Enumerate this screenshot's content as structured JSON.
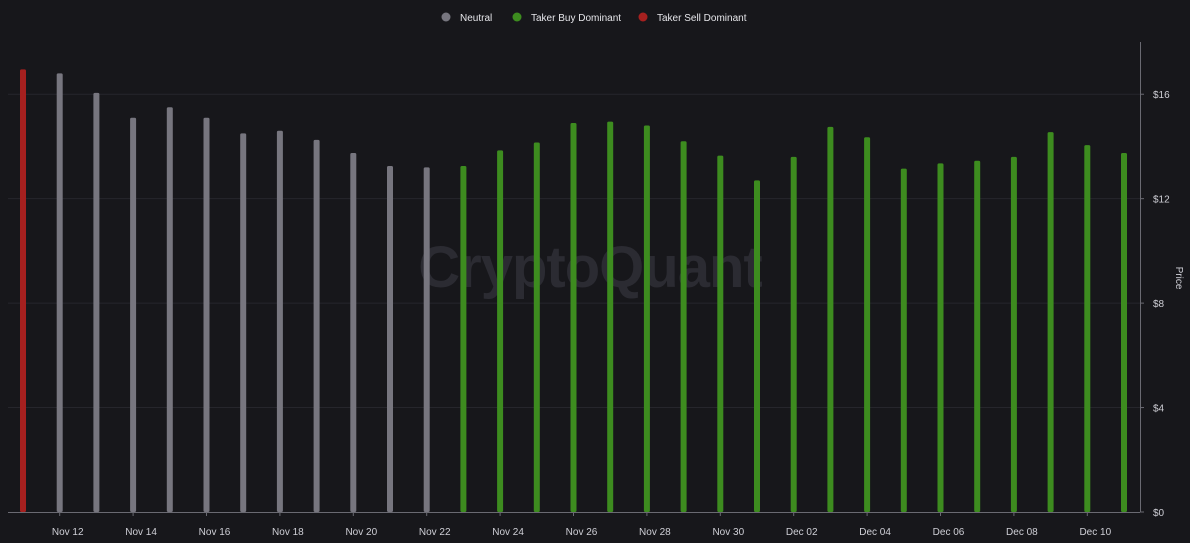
{
  "watermark": "CryptoQuant",
  "colors": {
    "background": "#17171b",
    "grid": "#26262c",
    "axis": "#6a6a72",
    "neutral": "#77767f",
    "buy": "#3d8c1f",
    "sell": "#a6201f"
  },
  "chart_data": {
    "type": "bar",
    "title": "",
    "xlabel": "",
    "ylabel": "Price",
    "ylim": [
      0,
      18
    ],
    "y_ticks": [
      0,
      4,
      8,
      12,
      16
    ],
    "y_tick_labels": [
      "$0",
      "$4",
      "$8",
      "$12",
      "$16"
    ],
    "x_tick_labels": [
      "Nov 12",
      "Nov 14",
      "Nov 16",
      "Nov 18",
      "Nov 20",
      "Nov 22",
      "Nov 24",
      "Nov 26",
      "Nov 28",
      "Nov 30",
      "Dec 02",
      "Dec 04",
      "Dec 06",
      "Dec 08",
      "Dec 10"
    ],
    "legend_position": "top-center",
    "grid": true,
    "legend": [
      {
        "name": "Neutral",
        "color": "#77767f"
      },
      {
        "name": "Taker Buy Dominant",
        "color": "#3d8c1f"
      },
      {
        "name": "Taker Sell Dominant",
        "color": "#a6201f"
      }
    ],
    "categories": [
      "2024-11-11",
      "2024-11-12",
      "2024-11-13",
      "2024-11-14",
      "2024-11-15",
      "2024-11-16",
      "2024-11-17",
      "2024-11-18",
      "2024-11-19",
      "2024-11-20",
      "2024-11-21",
      "2024-11-22",
      "2024-11-23",
      "2024-11-24",
      "2024-11-25",
      "2024-11-26",
      "2024-11-27",
      "2024-11-28",
      "2024-11-29",
      "2024-11-30",
      "2024-12-01",
      "2024-12-02",
      "2024-12-03",
      "2024-12-04",
      "2024-12-05",
      "2024-12-06",
      "2024-12-07",
      "2024-12-08",
      "2024-12-09",
      "2024-12-10",
      "2024-12-11"
    ],
    "values": [
      16.95,
      16.8,
      16.05,
      15.1,
      15.5,
      15.1,
      14.5,
      14.6,
      14.25,
      13.75,
      13.25,
      13.2,
      13.25,
      13.85,
      14.15,
      14.9,
      14.95,
      14.8,
      14.2,
      13.65,
      12.7,
      13.6,
      14.75,
      14.35,
      13.15,
      13.35,
      13.45,
      13.6,
      14.55,
      14.05,
      13.75
    ],
    "dominance": [
      "sell",
      "neutral",
      "neutral",
      "neutral",
      "neutral",
      "neutral",
      "neutral",
      "neutral",
      "neutral",
      "neutral",
      "neutral",
      "neutral",
      "buy",
      "buy",
      "buy",
      "buy",
      "buy",
      "buy",
      "buy",
      "buy",
      "buy",
      "buy",
      "buy",
      "buy",
      "buy",
      "buy",
      "buy",
      "buy",
      "buy",
      "buy",
      "buy"
    ]
  }
}
